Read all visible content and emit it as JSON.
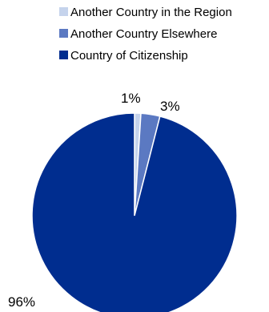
{
  "chart_data": {
    "type": "pie",
    "title": "",
    "legend_position": "top-right",
    "start_angle_deg": 0,
    "direction": "clockwise",
    "slices": [
      {
        "label": "Another Country in the Region",
        "value": 1,
        "display": "1%",
        "color": "#c5d3ec"
      },
      {
        "label": "Another Country Elsewhere",
        "value": 3,
        "display": "3%",
        "color": "#5b79c2"
      },
      {
        "label": "Country of Citizenship",
        "value": 96,
        "display": "96%",
        "color": "#002d8f"
      }
    ]
  }
}
